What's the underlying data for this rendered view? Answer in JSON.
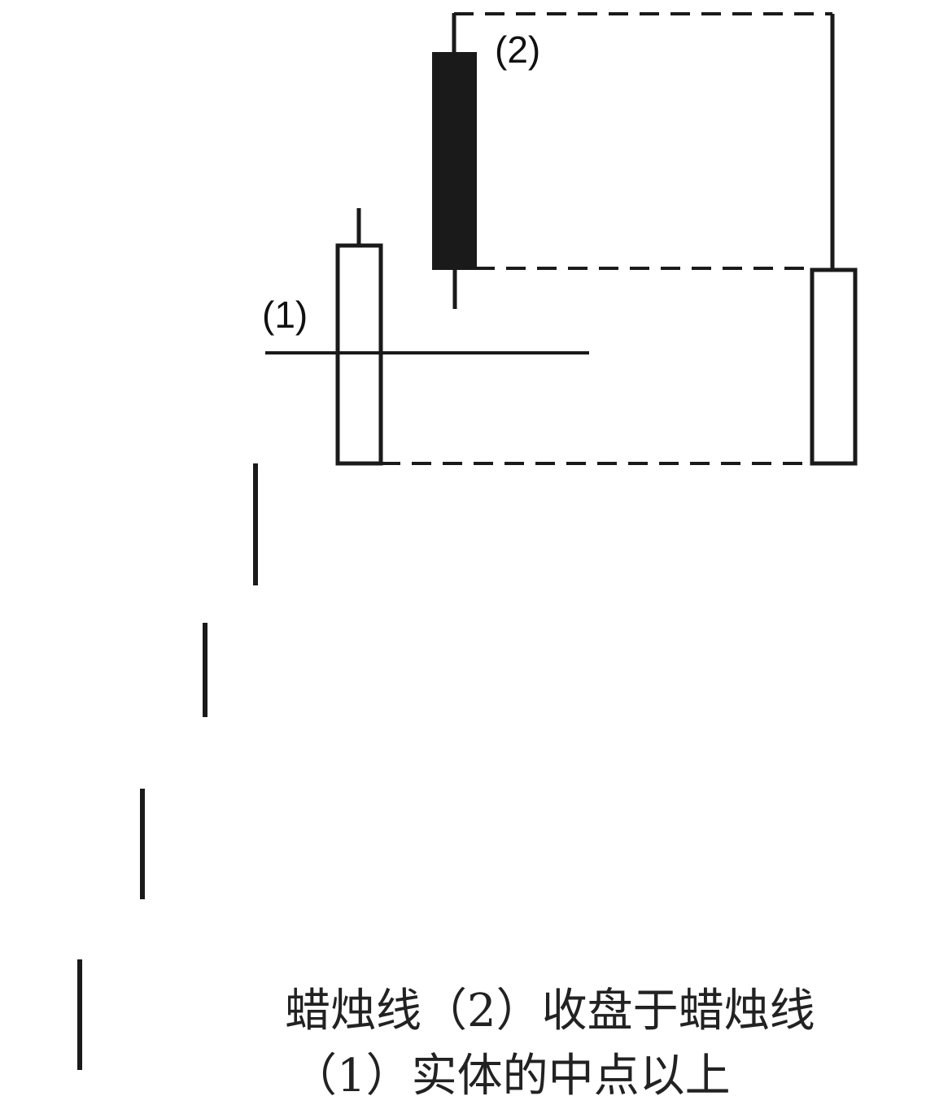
{
  "labels": {
    "candle_2": "(2)",
    "candle_1": "(1)"
  },
  "caption": {
    "line1": "蜡烛线（2）收盘于蜡烛线",
    "line2": "（1）实体的中点以上"
  },
  "colors": {
    "ink": "#1a1a1a",
    "paper": "#ffffff"
  }
}
